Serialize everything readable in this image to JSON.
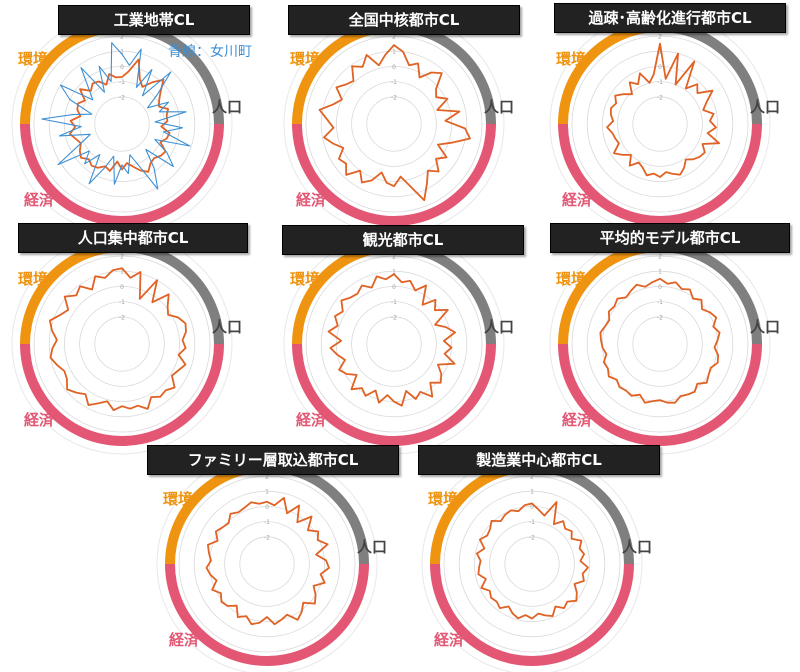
{
  "colors": {
    "population": "#7f7f7f",
    "economy": "#e35774",
    "environment": "#ef9410",
    "series": "#e06224",
    "highlight": "#3d8fd4",
    "grid": "#d9d9d9",
    "tick": "#a0a0a0"
  },
  "sector_labels": {
    "population": "人口",
    "economy": "経済",
    "environment": "環境"
  },
  "chart_data": [
    {
      "type": "radar",
      "title": "工業地帯CL",
      "rlim": [
        -3,
        2
      ],
      "ticks": [
        "2",
        "1",
        "0",
        "-1",
        "-2"
      ],
      "grid": true,
      "annotation": "青線：女川町",
      "series": [
        {
          "values": [
            -0.7,
            -0.3,
            0.6,
            -0.6,
            -1.0,
            -0.4,
            0.2,
            -0.5,
            -0.9,
            -1.1,
            -0.6,
            -0.8,
            -0.8,
            -1.2,
            -0.6,
            -0.7,
            -1.0,
            -0.4,
            -0.5,
            -0.7,
            -0.6,
            -0.2,
            -0.5,
            -0.9,
            -1.2,
            -0.8,
            -1.3,
            -0.6,
            -0.8,
            -0.5,
            -0.4,
            -0.6,
            -0.3,
            -0.5,
            -0.8,
            -0.6,
            -0.3,
            -0.7,
            -0.4,
            -1.0,
            -0.7,
            -0.6,
            -0.9,
            -0.2,
            -0.8,
            -0.5,
            -0.6,
            -1.0,
            -0.4,
            -0.7
          ]
        },
        {
          "name": "女川町",
          "values": [
            0.8,
            0.1,
            1.3,
            -1.2,
            0.3,
            -1.5,
            0.9,
            -0.8,
            -1.8,
            -0.4,
            -1.2,
            0.5,
            -1.6,
            0.2,
            -1.0,
            0.9,
            -1.4,
            -0.3,
            0.6,
            -1.5,
            -0.2,
            1.1,
            -0.9,
            -1.7,
            -0.5,
            -1.1,
            0.2,
            -1.6,
            -0.7,
            0.7,
            -1.3,
            -0.2,
            -1.0,
            1.2,
            -0.8,
            -1.6,
            0.4,
            -1.1,
            1.5,
            -0.5,
            -1.7,
            0.0,
            1.0,
            -1.3,
            -0.6,
            0.8,
            -1.4,
            0.3,
            -0.9,
            1.6
          ]
        }
      ]
    },
    {
      "type": "radar",
      "title": "全国中核都市CL",
      "rlim": [
        -3,
        2
      ],
      "ticks": [
        "2",
        "1",
        "0",
        "-1",
        "-2"
      ],
      "grid": true,
      "series": [
        {
          "values": [
            1.4,
            1.0,
            0.2,
            0.5,
            -0.3,
            0.4,
            0.8,
            -0.2,
            -0.5,
            0.1,
            -0.8,
            0.6,
            -0.4,
            0.9,
            1.3,
            0.2,
            -0.6,
            0.3,
            -0.2,
            0.5,
            0.0,
            0.7,
            1.6,
            0.4,
            -0.3,
            0.3,
            0.1,
            -0.5,
            0.2,
            0.6,
            0.0,
            0.8,
            0.3,
            0.5,
            -0.1,
            0.4,
            0.9,
            0.2,
            0.6,
            1.2,
            0.4,
            0.0,
            0.7,
            0.3,
            0.1,
            0.9,
            0.5,
            1.1,
            0.2,
            0.8
          ]
        }
      ]
    },
    {
      "type": "radar",
      "title": "過疎･高齢化進行都市CL",
      "rlim": [
        -3,
        2
      ],
      "ticks": [
        "2",
        "1",
        "0",
        "-1",
        "-2"
      ],
      "grid": true,
      "series": [
        {
          "values": [
            1.5,
            -0.8,
            1.0,
            -1.0,
            0.9,
            -0.9,
            -0.2,
            -0.6,
            0.3,
            -0.4,
            -0.8,
            -0.2,
            -0.5,
            -0.1,
            -0.6,
            0.3,
            -0.7,
            -0.3,
            -0.4,
            -0.6,
            -0.9,
            -0.5,
            -0.2,
            -0.4,
            -0.6,
            -0.3,
            -0.5,
            -0.3,
            -0.7,
            -0.9,
            -0.4,
            -1.0,
            -0.6,
            -0.2,
            -0.8,
            -0.7,
            -0.6,
            -0.3,
            -0.7,
            -0.5,
            -0.4,
            -0.6,
            -0.3,
            -0.7,
            -1.1,
            -0.4,
            -0.8,
            -0.2,
            -1.0,
            -0.5
          ]
        }
      ]
    },
    {
      "type": "radar",
      "title": "人口集中都市CL",
      "rlim": [
        -3,
        2
      ],
      "ticks": [
        "2",
        "1",
        "0",
        "-1",
        "-2"
      ],
      "grid": true,
      "series": [
        {
          "values": [
            1.2,
            0.6,
            1.1,
            -0.6,
            1.0,
            -0.4,
            0.7,
            0.1,
            -0.2,
            0.3,
            0.6,
            0.5,
            0.2,
            0.4,
            0.0,
            0.6,
            0.3,
            0.1,
            0.7,
            0.4,
            0.5,
            0.2,
            0.8,
            0.4,
            0.5,
            0.3,
            0.6,
            0.1,
            0.4,
            0.8,
            0.3,
            0.6,
            0.9,
            0.5,
            0.4,
            0.7,
            1.0,
            0.8,
            0.5,
            0.9,
            1.2,
            0.7,
            0.4,
            1.1,
            0.6,
            0.9,
            0.3,
            1.0,
            0.7,
            1.1
          ]
        }
      ]
    },
    {
      "type": "radar",
      "title": "観光都市CL",
      "rlim": [
        -3,
        2
      ],
      "ticks": [
        "2",
        "1",
        "0",
        "-1",
        "-2"
      ],
      "grid": true,
      "series": [
        {
          "values": [
            0.8,
            0.3,
            0.5,
            0.0,
            0.6,
            -0.6,
            0.2,
            -0.3,
            0.4,
            -0.8,
            -0.2,
            0.3,
            -0.5,
            0.0,
            -0.4,
            0.4,
            -0.6,
            -0.1,
            0.2,
            -0.3,
            0.5,
            -0.2,
            0.1,
            -0.6,
            0.3,
            0.0,
            -0.4,
            0.2,
            -0.5,
            0.1,
            -0.2,
            0.3,
            -0.6,
            -0.1,
            0.2,
            -0.4,
            0.0,
            0.4,
            -0.3,
            0.6,
            0.1,
            0.5,
            0.2,
            0.7,
            0.4,
            0.3,
            0.6,
            0.2,
            0.8,
            0.5
          ]
        }
      ]
    },
    {
      "type": "radar",
      "title": "平均的モデル都市CL",
      "rlim": [
        -3,
        2
      ],
      "ticks": [
        "2",
        "1",
        "0",
        "-1",
        "-2"
      ],
      "grid": true,
      "series": [
        {
          "values": [
            0.5,
            0.2,
            0.4,
            0.1,
            0.3,
            -0.1,
            0.2,
            -0.2,
            0.1,
            0.3,
            -0.1,
            0.2,
            0.0,
            -0.2,
            0.1,
            0.2,
            -0.1,
            0.0,
            0.2,
            -0.2,
            0.1,
            0.0,
            -0.1,
            0.2,
            0.1,
            -0.1,
            0.0,
            0.2,
            -0.2,
            0.1,
            0.0,
            0.1,
            -0.1,
            0.2,
            0.0,
            0.1,
            -0.2,
            0.0,
            0.1,
            0.2,
            0.0,
            -0.1,
            0.2,
            0.1,
            0.3,
            0.0,
            0.2,
            0.4,
            0.1,
            0.3
          ]
        }
      ]
    },
    {
      "type": "radar",
      "title": "ファミリー層取込都市CL",
      "rlim": [
        -3,
        2
      ],
      "ticks": [
        "2",
        "1",
        "0",
        "-1",
        "-2"
      ],
      "grid": true,
      "series": [
        {
          "values": [
            0.3,
            0.1,
            0.7,
            -0.2,
            0.6,
            -0.4,
            0.5,
            -0.3,
            0.2,
            -0.1,
            0.4,
            -0.5,
            0.1,
            0.3,
            -0.2,
            0.2,
            -0.4,
            0.0,
            0.3,
            -0.3,
            0.1,
            0.4,
            -0.2,
            0.0,
            0.2,
            -0.3,
            0.1,
            0.3,
            -0.1,
            0.2,
            -0.4,
            0.0,
            0.1,
            -0.2,
            0.2,
            -0.3,
            0.0,
            0.2,
            -0.1,
            0.1,
            0.3,
            -0.2,
            0.2,
            0.0,
            -0.1,
            0.3,
            0.1,
            0.2,
            0.4,
            0.2
          ]
        }
      ]
    },
    {
      "type": "radar",
      "title": "製造業中心都市CL",
      "rlim": [
        -3,
        2
      ],
      "ticks": [
        "2",
        "1",
        "0",
        "-1",
        "-2"
      ],
      "grid": true,
      "series": [
        {
          "values": [
            0.2,
            -0.2,
            -0.5,
            0.6,
            -0.8,
            -0.3,
            -0.6,
            -0.4,
            -0.7,
            -0.2,
            -0.5,
            -0.3,
            -0.6,
            -0.1,
            -0.4,
            -0.2,
            -0.7,
            -0.3,
            0.0,
            -0.4,
            -0.2,
            -0.6,
            -0.1,
            -0.3,
            -0.5,
            -0.2,
            -0.4,
            -0.1,
            -0.3,
            -0.6,
            -0.2,
            -0.4,
            -0.3,
            -0.5,
            -0.1,
            -0.6,
            -0.2,
            -0.3,
            -0.4,
            -0.1,
            -0.5,
            0.0,
            -0.3,
            -0.2,
            0.1,
            -0.3,
            -0.1,
            0.0,
            -0.2,
            0.1
          ]
        }
      ]
    }
  ]
}
